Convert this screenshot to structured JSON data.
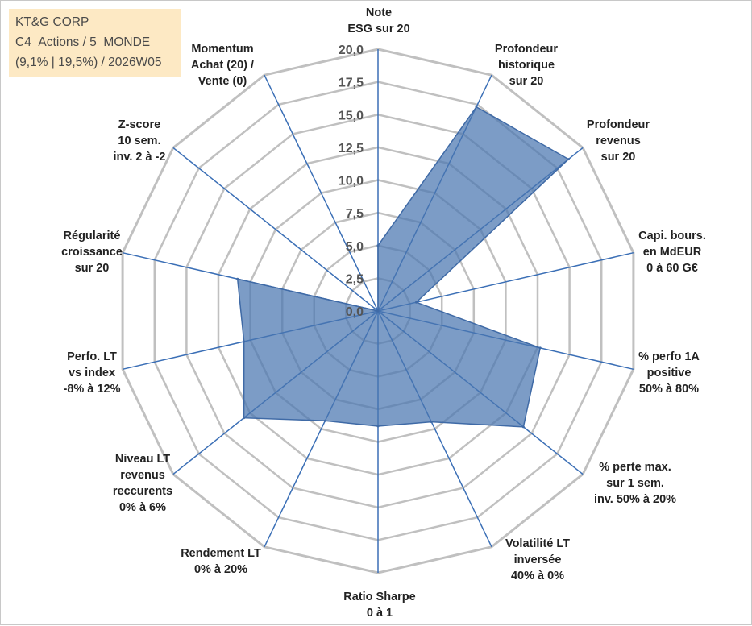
{
  "info_box": {
    "line1": "KT&G CORP",
    "line2": "C4_Actions / 5_MONDE",
    "line3": "(9,1% | 19,5%) / 2026W05"
  },
  "colors": {
    "grid": "#c0c0c0",
    "spoke": "#3b6fb6",
    "fill": "#4a76b0",
    "stroke": "#3f6aa6",
    "info_bg": "#fde9c4"
  },
  "chart_data": {
    "type": "radar",
    "title": "",
    "rmin": 0,
    "rmax": 20,
    "tick_labels": [
      "0,0",
      "2,5",
      "5,0",
      "7,5",
      "10,0",
      "12,5",
      "15,0",
      "17,5",
      "20,0"
    ],
    "axes": [
      {
        "lines": [
          "Note",
          "ESG sur 20"
        ]
      },
      {
        "lines": [
          "Profondeur",
          "historique",
          "sur 20"
        ]
      },
      {
        "lines": [
          "Profondeur",
          "revenus",
          "sur 20"
        ]
      },
      {
        "lines": [
          "Capi. bours.",
          "en MdEUR",
          "0 à 60 G€"
        ]
      },
      {
        "lines": [
          "% perfo 1A",
          "positive",
          "50% à 80%"
        ]
      },
      {
        "lines": [
          "% perte max.",
          "sur 1 sem.",
          "inv. 50% à 20%"
        ]
      },
      {
        "lines": [
          "Volatilité LT",
          "inversée",
          "40% à 0%"
        ]
      },
      {
        "lines": [
          "Ratio Sharpe",
          "0 à 1"
        ]
      },
      {
        "lines": [
          "Rendement LT",
          "0% à 20%"
        ]
      },
      {
        "lines": [
          "Niveau LT",
          "revenus",
          "reccurents",
          "0% à 6%"
        ]
      },
      {
        "lines": [
          "Perfo. LT",
          "vs index",
          "-8% à 12%"
        ]
      },
      {
        "lines": [
          "Régularité",
          "croissance",
          "sur 20"
        ]
      },
      {
        "lines": [
          "Z-score",
          "10 sem.",
          "inv. 2 à -2"
        ]
      },
      {
        "lines": [
          "Momentum",
          "Achat (20) /",
          "Vente (0)"
        ]
      }
    ],
    "series": [
      {
        "name": "KT&G CORP",
        "values": [
          5.0,
          17.3,
          18.6,
          3.0,
          12.7,
          14.2,
          9.4,
          8.8,
          9.3,
          13.1,
          10.5,
          11.0,
          0.0,
          0.0
        ]
      }
    ]
  }
}
